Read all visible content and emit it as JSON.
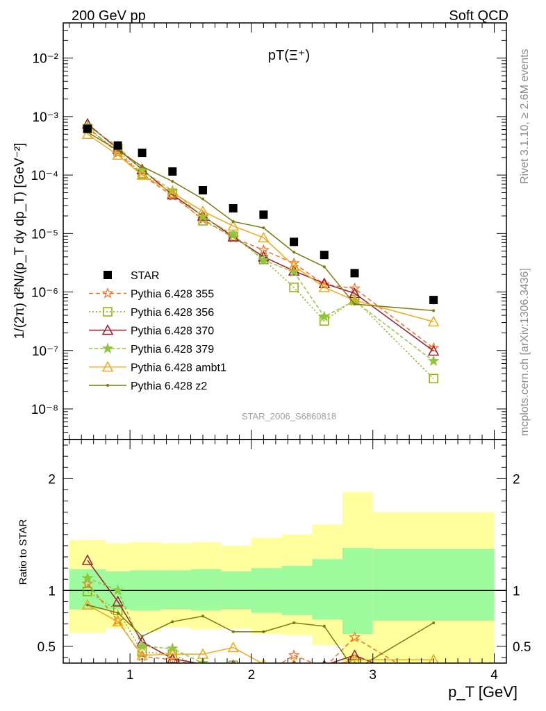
{
  "header": {
    "left": "200 GeV pp",
    "right": "Soft QCD"
  },
  "side_labels": {
    "rivet": "Rivet 3.1.10, ≥ 2.6M events",
    "mcplots": "mcplots.cern.ch [arXiv:1306.3436]"
  },
  "chart_data": {
    "type": "scatter",
    "title": "pT(Ξ⁺)",
    "watermark": "STAR_2006_S6860818",
    "xlabel": "p_T [GeV]",
    "ylabel_main": "1/(2π) d²N/(p_T dy dp_T) [GeV⁻²]",
    "ylabel_ratio": "Ratio to STAR",
    "xlim": [
      0.45,
      4.1
    ],
    "ylim_main": [
      3e-09,
      0.04
    ],
    "ylim_ratio": [
      0.35,
      2.35
    ],
    "xscale": "linear",
    "yscale_main": "log",
    "x_ticks": [
      "1",
      "2",
      "3",
      "4"
    ],
    "y_ticks_main": [
      "10⁻⁸",
      "10⁻⁷",
      "10⁻⁶",
      "10⁻⁵",
      "10⁻⁴",
      "10⁻³",
      "10⁻²"
    ],
    "y_ticks_ratio": [
      "0.5",
      "1",
      "2"
    ],
    "legend_position": "bottom-left",
    "star": {
      "name": "STAR",
      "x": [
        0.65,
        0.9,
        1.1,
        1.35,
        1.6,
        1.85,
        2.1,
        2.35,
        2.6,
        2.85,
        3.5
      ],
      "y": [
        0.00062,
        0.00032,
        0.00024,
        0.000115,
        5.5e-05,
        2.7e-05,
        2.1e-05,
        7.2e-06,
        4.3e-06,
        2.1e-06,
        7.3e-07
      ],
      "x_edges": [
        0.5,
        0.8,
        1.0,
        1.25,
        1.5,
        1.75,
        2.0,
        2.25,
        2.5,
        2.75,
        3.0,
        4.0
      ],
      "band_inner": [
        [
          0.83,
          1.19
        ],
        [
          0.83,
          1.17
        ],
        [
          0.82,
          1.18
        ],
        [
          0.83,
          1.18
        ],
        [
          0.82,
          1.19
        ],
        [
          0.83,
          1.17
        ],
        [
          0.8,
          1.2
        ],
        [
          0.78,
          1.22
        ],
        [
          0.74,
          1.28
        ],
        [
          0.61,
          1.38
        ],
        [
          0.73,
          1.37
        ]
      ],
      "band_outer": [
        [
          0.62,
          1.45
        ],
        [
          0.66,
          1.42
        ],
        [
          0.63,
          1.43
        ],
        [
          0.67,
          1.42
        ],
        [
          0.65,
          1.43
        ],
        [
          0.66,
          1.4
        ],
        [
          0.61,
          1.47
        ],
        [
          0.6,
          1.5
        ],
        [
          0.51,
          1.59
        ],
        [
          0.21,
          1.88
        ],
        [
          0.32,
          1.7
        ]
      ]
    },
    "series": [
      {
        "name": "Pythia 6.428 355",
        "color": "#ff6a1a",
        "marker": "star-open",
        "dash": "6,4",
        "y": [
          0.00066,
          0.00024,
          0.0001,
          4.4e-05,
          1.75e-05,
          8.5e-06,
          5.2e-06,
          3.1e-06,
          1.35e-06,
          1.15e-06,
          1.1e-07
        ],
        "ratio": [
          1.06,
          0.73,
          0.41,
          0.38,
          0.32,
          0.31,
          0.25,
          0.42,
          0.31,
          0.58,
          0.15
        ]
      },
      {
        "name": "Pythia 6.428 356",
        "color": "#8ab000",
        "marker": "square-open",
        "dash": "2,3",
        "y": [
          0.00062,
          0.00026,
          0.000105,
          4.9e-05,
          1.65e-05,
          9e-06,
          3.6e-06,
          1.2e-06,
          3.2e-07,
          7.5e-07,
          3.3e-08
        ],
        "ratio": [
          0.99,
          0.82,
          0.45,
          0.43,
          0.3,
          0.33,
          0.17,
          0.17,
          0.07,
          0.36,
          0.05
        ]
      },
      {
        "name": "Pythia 6.428 370",
        "color": "#9c1b2e",
        "marker": "triangle-open",
        "dash": "",
        "y": [
          0.00075,
          0.00028,
          0.000125,
          4.6e-05,
          2e-05,
          8.8e-06,
          4e-06,
          2.3e-06,
          1.4e-06,
          9.5e-07,
          9.8e-08
        ],
        "ratio": [
          1.27,
          0.9,
          0.54,
          0.39,
          0.34,
          0.33,
          0.19,
          0.32,
          0.33,
          0.42,
          0.13
        ]
      },
      {
        "name": "Pythia 6.428 379",
        "color": "#8ec63f",
        "marker": "star-filled",
        "dash": "5,3",
        "y": [
          0.00069,
          0.00031,
          0.00012,
          5.4e-05,
          1.95e-05,
          9.5e-06,
          3.5e-06,
          2.2e-06,
          3.8e-07,
          7e-07,
          6.6e-08
        ],
        "ratio": [
          1.11,
          1.0,
          0.5,
          0.48,
          0.35,
          0.32,
          0.28,
          0.3,
          0.1,
          0.33,
          0.09
        ]
      },
      {
        "name": "Pythia 6.428 ambt1",
        "color": "#f0a818",
        "marker": "triangle-open",
        "dash": "",
        "y": [
          0.0005,
          0.00022,
          0.0001,
          5e-05,
          2.4e-05,
          1.35e-05,
          8.5e-06,
          2.8e-06,
          1.2e-06,
          7.2e-07,
          3.1e-07
        ],
        "ratio": [
          0.87,
          0.72,
          0.42,
          0.43,
          0.43,
          0.49,
          0.34,
          0.34,
          0.31,
          0.38,
          0.38
        ]
      },
      {
        "name": "Pythia 6.428 z2",
        "color": "#7a7a10",
        "marker": "dot",
        "dash": "",
        "y": [
          0.00054,
          0.000265,
          0.00014,
          7.8e-05,
          3.9e-05,
          1.6e-05,
          1.25e-05,
          4.8e-06,
          2.7e-06,
          6.2e-07,
          4.8e-07
        ],
        "ratio": [
          0.87,
          0.8,
          0.59,
          0.72,
          0.77,
          0.63,
          0.63,
          0.71,
          0.68,
          0.29,
          0.71
        ]
      }
    ]
  }
}
